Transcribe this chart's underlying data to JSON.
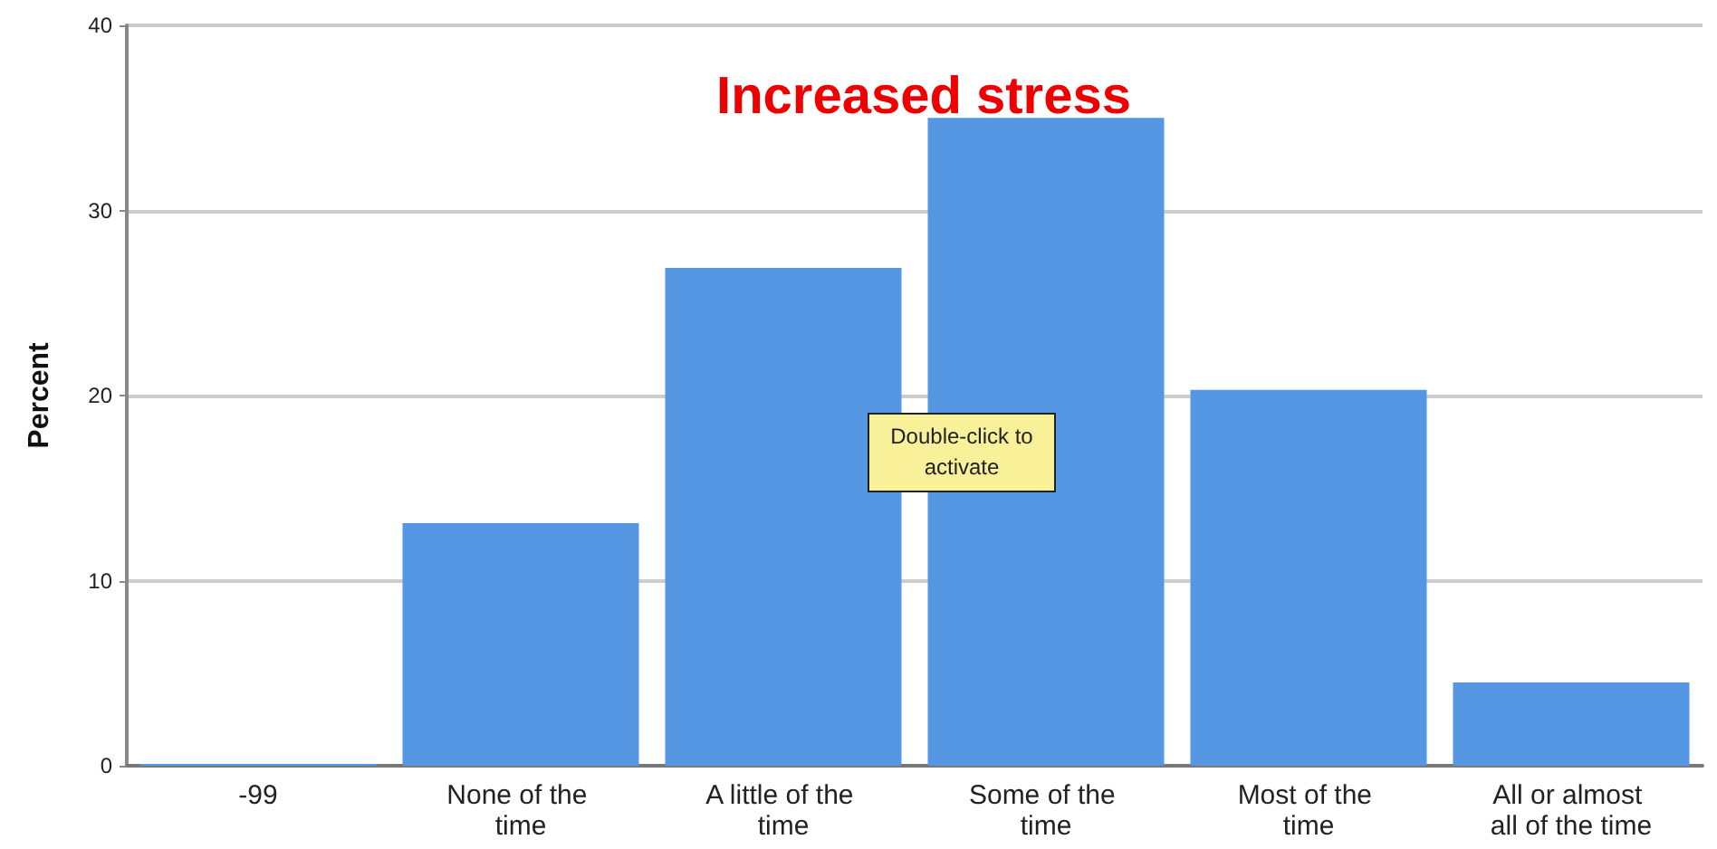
{
  "chart_data": {
    "type": "bar",
    "title": "Increased stress",
    "ylabel": "Percent",
    "categories": [
      "-99",
      "None of the time",
      "A little of the time",
      "Some of the time",
      "Most of the time",
      "All or almost all of the time"
    ],
    "values": [
      0.1,
      13.1,
      26.9,
      35.0,
      20.3,
      4.5
    ],
    "color": "#5597e3",
    "ylim": [
      0,
      40
    ],
    "yticks": [
      0,
      10,
      20,
      30,
      40
    ],
    "grid": "y",
    "annotations": [
      "Double-click to activate"
    ]
  }
}
